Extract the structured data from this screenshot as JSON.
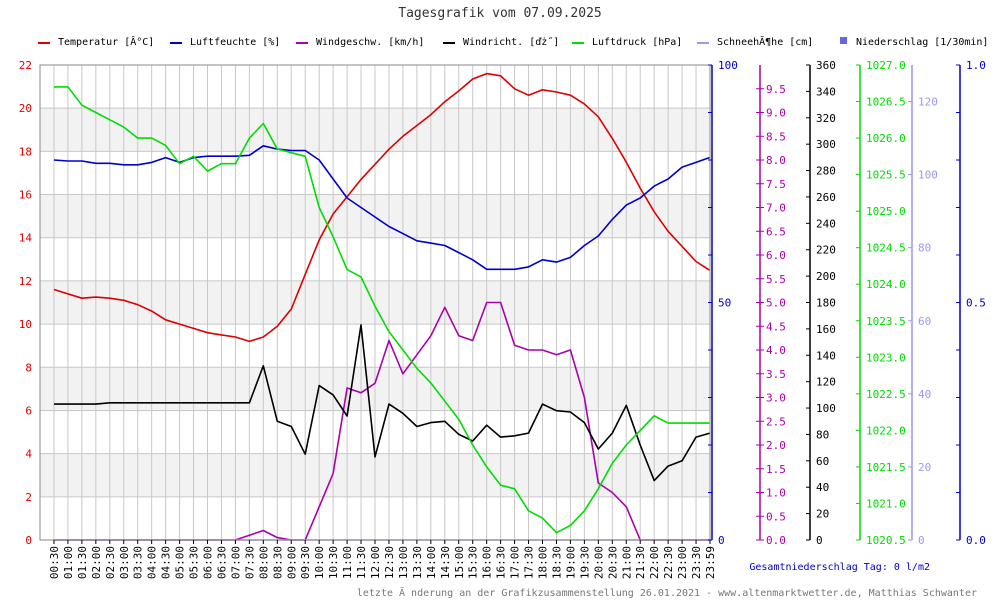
{
  "chart_data": {
    "type": "line",
    "title": "Tagesgrafik vom 07.09.2025",
    "legend": [
      {
        "label": "Temperatur [Â°C]",
        "color": "#dd0000",
        "marker": "line"
      },
      {
        "label": "Luftfeuchte [%]",
        "color": "#0000cc",
        "marker": "line"
      },
      {
        "label": "Windgeschw. [km/h]",
        "color": "#aa00aa",
        "marker": "line"
      },
      {
        "label": "Windricht. [ďż˝]",
        "color": "#000000",
        "marker": "line"
      },
      {
        "label": "Luftdruck [hPa]",
        "color": "#00dd00",
        "marker": "line"
      },
      {
        "label": "SchneehĂ¶he [cm]",
        "color": "#9999ee",
        "marker": "line"
      },
      {
        "label": "Niederschlag [1/30min]",
        "color": "#6666dd",
        "marker": "square"
      }
    ],
    "x_ticks": [
      "00:30",
      "01:00",
      "01:30",
      "02:00",
      "02:30",
      "03:00",
      "03:30",
      "04:00",
      "04:30",
      "05:00",
      "05:30",
      "06:00",
      "06:30",
      "07:00",
      "07:30",
      "08:00",
      "08:30",
      "09:00",
      "09:30",
      "10:00",
      "10:30",
      "11:00",
      "11:30",
      "12:00",
      "12:30",
      "13:00",
      "13:30",
      "14:00",
      "14:30",
      "15:00",
      "15:30",
      "16:00",
      "16:30",
      "17:00",
      "17:30",
      "18:00",
      "18:30",
      "19:00",
      "19:30",
      "20:00",
      "20:30",
      "21:00",
      "21:30",
      "22:00",
      "22:30",
      "23:00",
      "23:30",
      "23:59"
    ],
    "grid": true,
    "axes": {
      "temperature": {
        "range": [
          0,
          22
        ],
        "ticks": [
          "0",
          "2",
          "4",
          "6",
          "8",
          "10",
          "12",
          "14",
          "16",
          "18",
          "20",
          "22"
        ],
        "color": "#dd0000"
      },
      "humidity": {
        "range": [
          0,
          100
        ],
        "ticks": [
          "0",
          "50",
          "100"
        ],
        "color": "#0000cc"
      },
      "wind_speed": {
        "range": [
          0,
          10
        ],
        "ticks": [
          "0.0",
          "0.5",
          "1.0",
          "1.5",
          "2.0",
          "2.5",
          "3.0",
          "3.5",
          "4.0",
          "4.5",
          "5.0",
          "5.5",
          "6.0",
          "6.5",
          "7.0",
          "7.5",
          "8.0",
          "8.5",
          "9.0",
          "9.5"
        ],
        "color": "#aa00aa"
      },
      "wind_direction": {
        "range": [
          0,
          360
        ],
        "ticks": [
          "0",
          "20",
          "40",
          "60",
          "80",
          "100",
          "120",
          "140",
          "160",
          "180",
          "200",
          "220",
          "240",
          "260",
          "280",
          "300",
          "320",
          "340",
          "360"
        ],
        "color": "#000000"
      },
      "pressure": {
        "range": [
          1020.5,
          1027.0
        ],
        "ticks": [
          "1020.5",
          "1021.0",
          "1021.5",
          "1022.0",
          "1022.5",
          "1023.0",
          "1023.5",
          "1024.0",
          "1024.5",
          "1025.0",
          "1025.5",
          "1026.0",
          "1026.5",
          "1027.0"
        ],
        "color": "#00dd00"
      },
      "snow_height": {
        "range": [
          0,
          130
        ],
        "ticks": [
          "0",
          "20",
          "40",
          "60",
          "80",
          "100",
          "120"
        ],
        "color": "#9999ee"
      },
      "precipitation": {
        "range": [
          0,
          1.0
        ],
        "ticks": [
          "0.0",
          "0.5",
          "1.0"
        ],
        "color": "#0000cc"
      }
    },
    "series": [
      {
        "name": "Temperatur [Â°C]",
        "axis": "temperature",
        "color": "#dd0000",
        "points": [
          [
            0.5,
            11.6
          ],
          [
            1.0,
            11.4
          ],
          [
            1.5,
            11.2
          ],
          [
            2.0,
            11.25
          ],
          [
            2.5,
            11.2
          ],
          [
            3.0,
            11.1
          ],
          [
            3.5,
            10.9
          ],
          [
            4.0,
            10.6
          ],
          [
            4.5,
            10.2
          ],
          [
            5.0,
            10.0
          ],
          [
            5.5,
            9.8
          ],
          [
            6.0,
            9.6
          ],
          [
            6.5,
            9.5
          ],
          [
            7.0,
            9.4
          ],
          [
            7.5,
            9.2
          ],
          [
            8.0,
            9.4
          ],
          [
            8.5,
            9.9
          ],
          [
            9.0,
            10.7
          ],
          [
            9.5,
            12.3
          ],
          [
            10.0,
            13.9
          ],
          [
            10.5,
            15.1
          ],
          [
            11.0,
            15.9
          ],
          [
            11.5,
            16.7
          ],
          [
            12.0,
            17.4
          ],
          [
            12.5,
            18.1
          ],
          [
            13.0,
            18.7
          ],
          [
            13.5,
            19.2
          ],
          [
            14.0,
            19.7
          ],
          [
            14.5,
            20.3
          ],
          [
            15.0,
            20.8
          ],
          [
            15.5,
            21.35
          ],
          [
            16.0,
            21.6
          ],
          [
            16.5,
            21.5
          ],
          [
            17.0,
            20.9
          ],
          [
            17.5,
            20.6
          ],
          [
            18.0,
            20.85
          ],
          [
            18.5,
            20.75
          ],
          [
            19.0,
            20.6
          ],
          [
            19.5,
            20.2
          ],
          [
            20.0,
            19.6
          ],
          [
            20.5,
            18.6
          ],
          [
            21.0,
            17.5
          ],
          [
            21.5,
            16.3
          ],
          [
            22.0,
            15.2
          ],
          [
            22.5,
            14.3
          ],
          [
            23.0,
            13.6
          ],
          [
            23.5,
            12.9
          ],
          [
            23.98,
            12.5
          ]
        ]
      },
      {
        "name": "Luftfeuchte [%]",
        "axis": "humidity",
        "color": "#0000cc",
        "points": [
          [
            0.5,
            80.0
          ],
          [
            1.0,
            79.8
          ],
          [
            1.5,
            79.8
          ],
          [
            2.0,
            79.3
          ],
          [
            2.5,
            79.3
          ],
          [
            3.0,
            79.0
          ],
          [
            3.5,
            79.0
          ],
          [
            4.0,
            79.5
          ],
          [
            4.5,
            80.5
          ],
          [
            5.0,
            79.5
          ],
          [
            5.5,
            80.5
          ],
          [
            6.0,
            80.8
          ],
          [
            6.5,
            80.8
          ],
          [
            7.0,
            80.8
          ],
          [
            7.5,
            81.0
          ],
          [
            8.0,
            83.0
          ],
          [
            8.5,
            82.3
          ],
          [
            9.0,
            82.0
          ],
          [
            9.5,
            82.0
          ],
          [
            10.0,
            80.0
          ],
          [
            10.5,
            76.0
          ],
          [
            11.0,
            72.0
          ],
          [
            11.5,
            70.0
          ],
          [
            12.0,
            68.0
          ],
          [
            12.5,
            66.0
          ],
          [
            13.0,
            64.5
          ],
          [
            13.5,
            63.0
          ],
          [
            14.0,
            62.5
          ],
          [
            14.5,
            62.0
          ],
          [
            15.0,
            60.5
          ],
          [
            15.5,
            59.0
          ],
          [
            16.0,
            57.0
          ],
          [
            16.5,
            57.0
          ],
          [
            17.0,
            57.0
          ],
          [
            17.5,
            57.5
          ],
          [
            18.0,
            59.0
          ],
          [
            18.5,
            58.5
          ],
          [
            19.0,
            59.5
          ],
          [
            19.5,
            62.0
          ],
          [
            20.0,
            64.0
          ],
          [
            20.5,
            67.5
          ],
          [
            21.0,
            70.5
          ],
          [
            21.5,
            72.0
          ],
          [
            22.0,
            74.5
          ],
          [
            22.5,
            76.0
          ],
          [
            23.0,
            78.5
          ],
          [
            23.5,
            79.5
          ],
          [
            23.98,
            80.5
          ]
        ]
      },
      {
        "name": "Windgeschw. [km/h]",
        "axis": "wind_speed",
        "color": "#aa00aa",
        "points": [
          [
            0.5,
            0
          ],
          [
            1.0,
            0
          ],
          [
            2.0,
            0
          ],
          [
            3.0,
            0
          ],
          [
            4.0,
            0
          ],
          [
            5.0,
            0
          ],
          [
            6.0,
            0
          ],
          [
            6.5,
            0
          ],
          [
            7.0,
            0
          ],
          [
            7.5,
            0.1
          ],
          [
            8.0,
            0.2
          ],
          [
            8.5,
            0.05
          ],
          [
            9.0,
            0
          ],
          [
            9.5,
            0
          ],
          [
            10.0,
            0.7
          ],
          [
            10.5,
            1.4
          ],
          [
            11.0,
            3.2
          ],
          [
            11.5,
            3.1
          ],
          [
            12.0,
            3.3
          ],
          [
            12.5,
            4.2
          ],
          [
            13.0,
            3.5
          ],
          [
            13.5,
            3.9
          ],
          [
            14.0,
            4.3
          ],
          [
            14.5,
            4.9
          ],
          [
            15.0,
            4.3
          ],
          [
            15.5,
            4.2
          ],
          [
            16.0,
            5.0
          ],
          [
            16.5,
            5.0
          ],
          [
            17.0,
            4.1
          ],
          [
            17.5,
            4.0
          ],
          [
            18.0,
            4.0
          ],
          [
            18.5,
            3.9
          ],
          [
            19.0,
            4.0
          ],
          [
            19.5,
            3.0
          ],
          [
            20.0,
            1.2
          ],
          [
            20.5,
            1.0
          ],
          [
            21.0,
            0.7
          ],
          [
            21.5,
            0
          ],
          [
            22.0,
            0
          ],
          [
            23.0,
            0
          ],
          [
            23.98,
            0
          ]
        ]
      },
      {
        "name": "Windricht. [ďż˝]",
        "axis": "wind_direction",
        "color": "#000000",
        "points": [
          [
            0.5,
            103
          ],
          [
            1.0,
            103
          ],
          [
            1.5,
            103
          ],
          [
            2.0,
            103
          ],
          [
            2.5,
            104
          ],
          [
            3.0,
            104
          ],
          [
            3.5,
            104
          ],
          [
            4.0,
            104
          ],
          [
            4.5,
            104
          ],
          [
            5.0,
            104
          ],
          [
            5.5,
            104
          ],
          [
            6.0,
            104
          ],
          [
            6.5,
            104
          ],
          [
            7.0,
            104
          ],
          [
            7.5,
            104
          ],
          [
            8.0,
            132
          ],
          [
            8.5,
            90
          ],
          [
            9.0,
            86
          ],
          [
            9.5,
            65
          ],
          [
            10.0,
            117
          ],
          [
            10.5,
            110
          ],
          [
            11.0,
            94
          ],
          [
            11.5,
            163
          ],
          [
            12.0,
            63
          ],
          [
            12.5,
            103
          ],
          [
            13.0,
            96
          ],
          [
            13.5,
            86
          ],
          [
            14.0,
            89
          ],
          [
            14.5,
            90
          ],
          [
            15.0,
            80
          ],
          [
            15.5,
            75
          ],
          [
            16.0,
            87
          ],
          [
            16.5,
            78
          ],
          [
            17.0,
            79
          ],
          [
            17.5,
            81
          ],
          [
            18.0,
            103
          ],
          [
            18.5,
            98
          ],
          [
            19.0,
            97
          ],
          [
            19.5,
            89
          ],
          [
            20.0,
            69
          ],
          [
            20.5,
            81
          ],
          [
            21.0,
            102
          ],
          [
            21.5,
            72
          ],
          [
            22.0,
            45
          ],
          [
            22.5,
            56
          ],
          [
            23.0,
            60
          ],
          [
            23.5,
            78
          ],
          [
            24.0,
            81
          ]
        ]
      },
      {
        "name": "Luftdruck [hPa]",
        "axis": "pressure",
        "color": "#00dd00",
        "points": [
          [
            0.5,
            1026.7
          ],
          [
            1.0,
            1026.7
          ],
          [
            1.5,
            1026.45
          ],
          [
            2.0,
            1026.35
          ],
          [
            2.5,
            1026.25
          ],
          [
            3.0,
            1026.15
          ],
          [
            3.5,
            1026.0
          ],
          [
            4.0,
            1026.0
          ],
          [
            4.5,
            1025.9
          ],
          [
            5.0,
            1025.65
          ],
          [
            5.5,
            1025.75
          ],
          [
            6.0,
            1025.55
          ],
          [
            6.5,
            1025.65
          ],
          [
            7.0,
            1025.65
          ],
          [
            7.5,
            1026.0
          ],
          [
            8.0,
            1026.2
          ],
          [
            8.5,
            1025.85
          ],
          [
            9.0,
            1025.8
          ],
          [
            9.5,
            1025.75
          ],
          [
            10.0,
            1025.05
          ],
          [
            10.5,
            1024.65
          ],
          [
            11.0,
            1024.2
          ],
          [
            11.5,
            1024.1
          ],
          [
            12.0,
            1023.7
          ],
          [
            12.5,
            1023.35
          ],
          [
            13.0,
            1023.1
          ],
          [
            13.5,
            1022.85
          ],
          [
            14.0,
            1022.65
          ],
          [
            14.5,
            1022.4
          ],
          [
            15.0,
            1022.15
          ],
          [
            15.5,
            1021.8
          ],
          [
            16.0,
            1021.5
          ],
          [
            16.5,
            1021.25
          ],
          [
            17.0,
            1021.2
          ],
          [
            17.5,
            1020.9
          ],
          [
            18.0,
            1020.8
          ],
          [
            18.5,
            1020.6
          ],
          [
            19.0,
            1020.7
          ],
          [
            19.5,
            1020.9
          ],
          [
            20.0,
            1021.2
          ],
          [
            20.5,
            1021.55
          ],
          [
            21.0,
            1021.8
          ],
          [
            21.5,
            1022.0
          ],
          [
            22.0,
            1022.2
          ],
          [
            22.5,
            1022.1
          ],
          [
            23.0,
            1022.1
          ],
          [
            23.5,
            1022.1
          ],
          [
            23.98,
            1022.1
          ]
        ]
      },
      {
        "name": "SchneehĂ¶he [cm]",
        "axis": "snow_height",
        "color": "#9999ee",
        "points": [
          [
            0.5,
            0
          ],
          [
            23.98,
            0
          ]
        ]
      }
    ],
    "footer_right": "Gesamtniederschlag Tag: 0 l/m2",
    "credit": "letzte Ă nderung an der Grafikzusammenstellung 26.01.2021 - www.altenmarktwetter.de, Matthias Schwanter"
  },
  "colors": {
    "band_grey": "#f2f2f2",
    "grid": "#c8c8c8",
    "frame": "#000000",
    "title_text": "#333333",
    "credit_text": "#777777",
    "total_text": "#0000cc"
  }
}
